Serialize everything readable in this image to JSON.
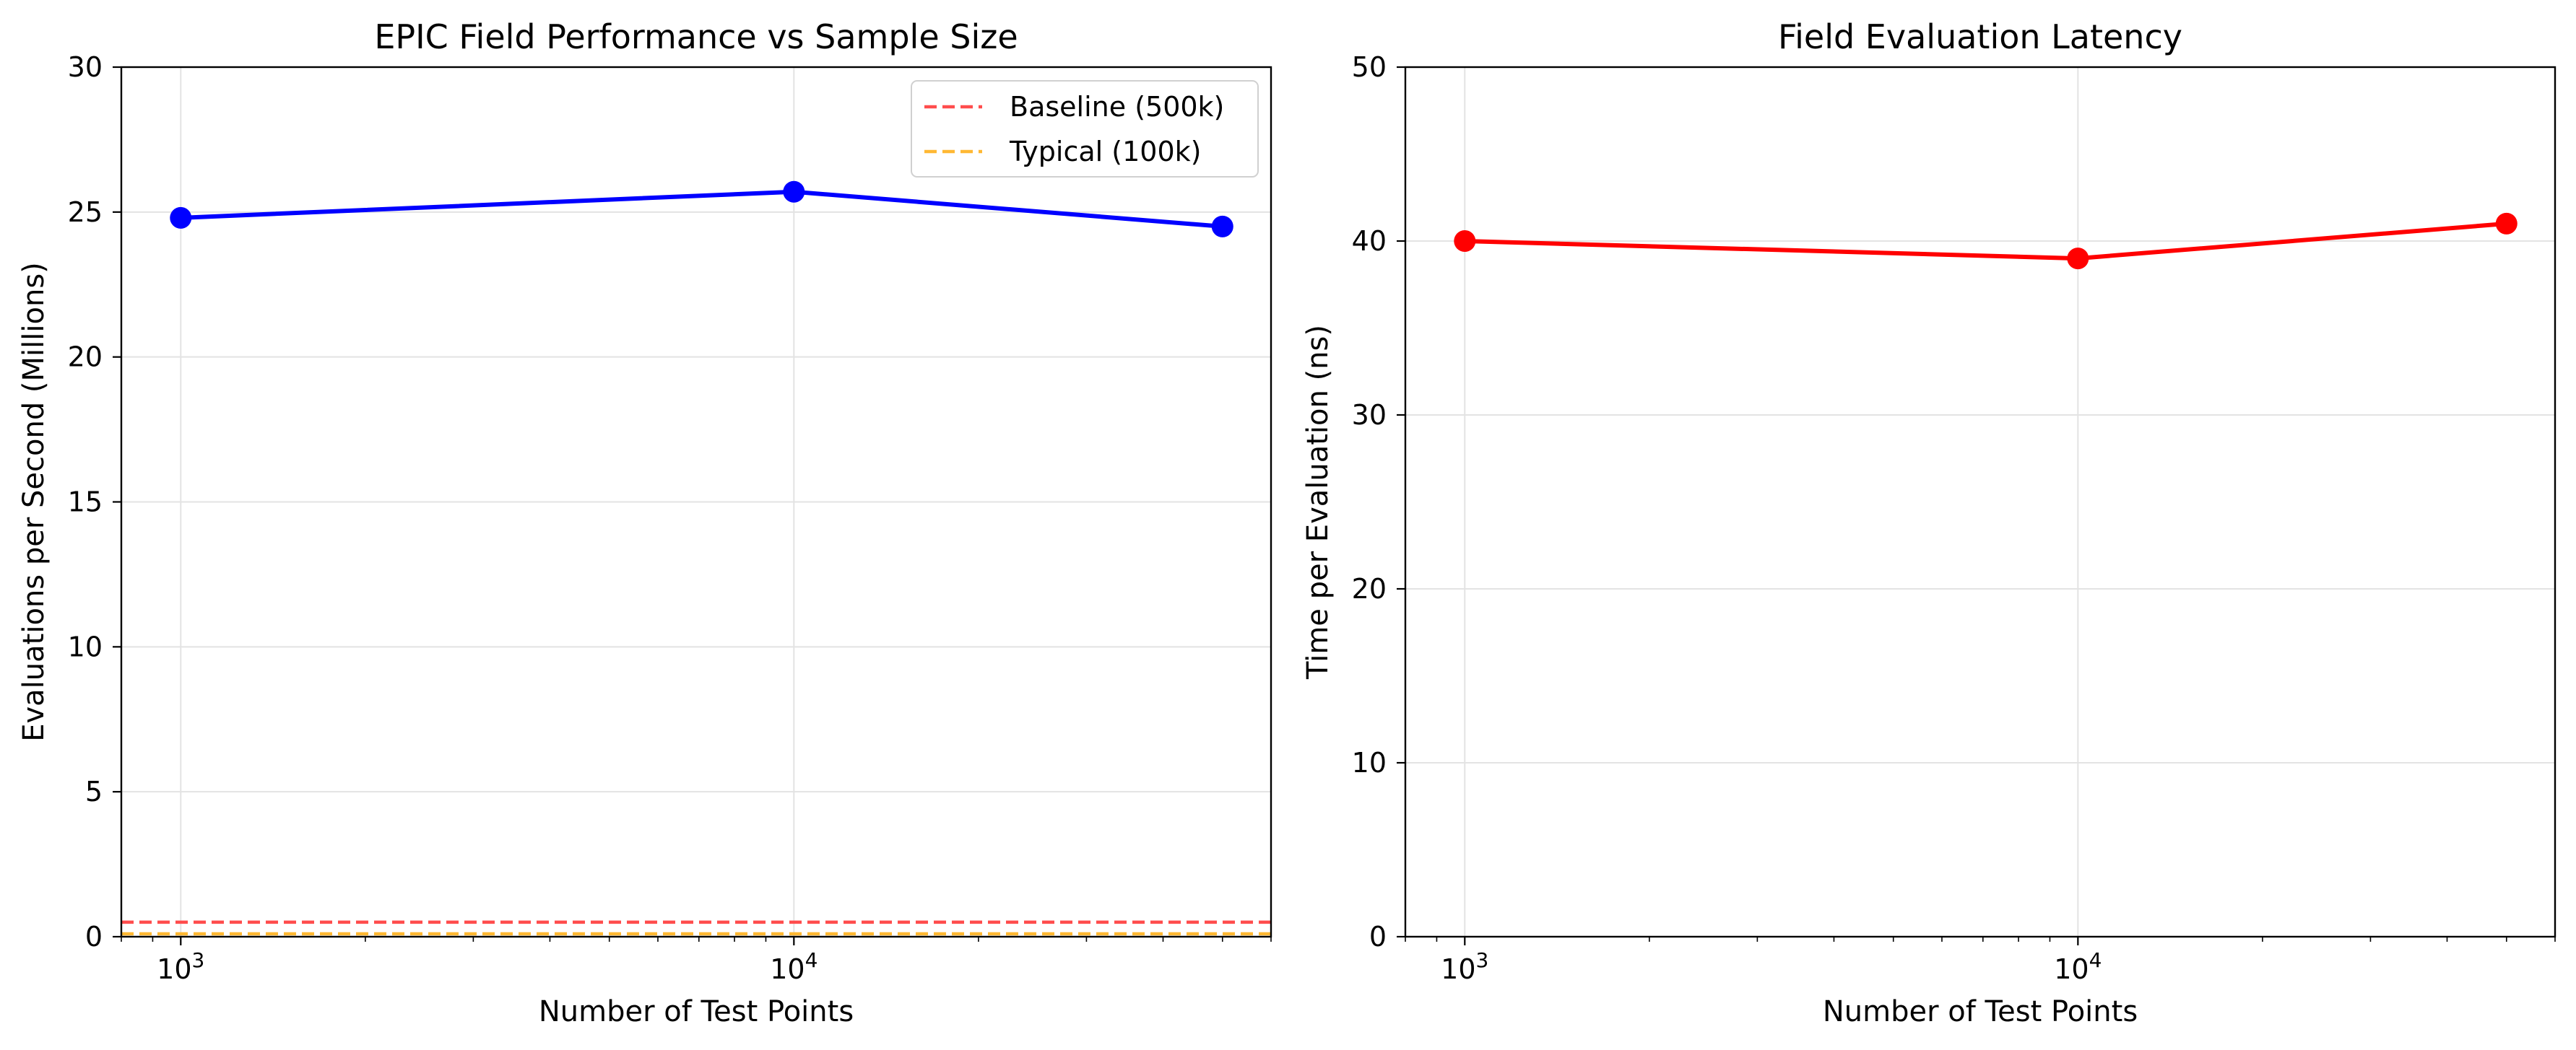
{
  "chart_data": [
    {
      "type": "line",
      "title": "EPIC Field Performance vs Sample Size",
      "xlabel": "Number of Test Points",
      "ylabel": "Evaluations per Second (Millions)",
      "xscale": "log",
      "xlim": [
        800,
        60000
      ],
      "ylim": [
        0,
        30
      ],
      "yticks": [
        0,
        5,
        10,
        15,
        20,
        25,
        30
      ],
      "xticks": [
        {
          "value": 1000,
          "base": "10",
          "exp": "3"
        },
        {
          "value": 10000,
          "base": "10",
          "exp": "4"
        }
      ],
      "grid": true,
      "legend": "top-right",
      "series": [
        {
          "color": "#0000ff",
          "marker": "circle",
          "x": [
            1000,
            10000,
            50000
          ],
          "y": [
            24.8,
            25.7,
            24.5
          ]
        }
      ],
      "reference_lines": [
        {
          "name": "Baseline (500k)",
          "y": 0.5,
          "color": "#ff4d4d",
          "style": "dashed"
        },
        {
          "name": "Typical (100k)",
          "y": 0.1,
          "color": "#ffb833",
          "style": "dashed"
        }
      ]
    },
    {
      "type": "line",
      "title": "Field Evaluation Latency",
      "xlabel": "Number of Test Points",
      "ylabel": "Time per Evaluation (ns)",
      "xscale": "log",
      "xlim": [
        800,
        60000
      ],
      "ylim": [
        0,
        50
      ],
      "yticks": [
        0,
        10,
        20,
        30,
        40,
        50
      ],
      "xticks": [
        {
          "value": 1000,
          "base": "10",
          "exp": "3"
        },
        {
          "value": 10000,
          "base": "10",
          "exp": "4"
        }
      ],
      "grid": true,
      "series": [
        {
          "color": "#ff0000",
          "marker": "circle",
          "x": [
            1000,
            10000,
            50000
          ],
          "y": [
            40,
            39,
            41
          ]
        }
      ]
    }
  ]
}
